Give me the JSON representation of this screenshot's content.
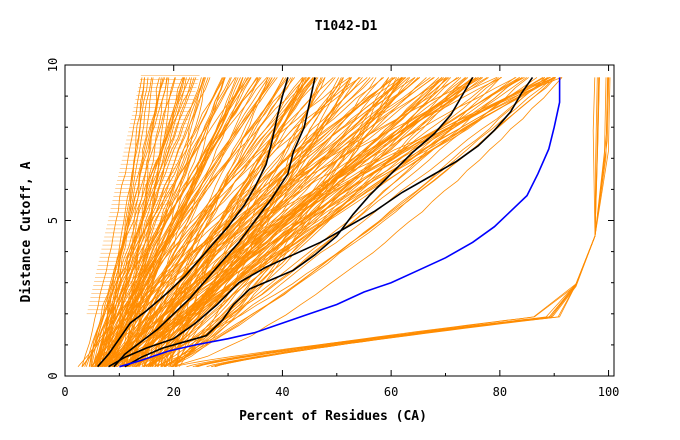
{
  "chart_data": {
    "type": "line",
    "title": "T1042-D1",
    "xlabel": "Percent of Residues (CA)",
    "ylabel": "Distance Cutoff, A",
    "xlim": [
      0,
      101
    ],
    "ylim": [
      0,
      10
    ],
    "xticks": [
      0,
      20,
      40,
      60,
      80,
      100
    ],
    "yticks": [
      0,
      5,
      10
    ],
    "grid": false,
    "colors": {
      "bundle": "#ff8c00",
      "highlight": "#000000",
      "best": "#0000ff"
    },
    "series": [
      {
        "color": "#000000",
        "points": [
          [
            6,
            0.3
          ],
          [
            8,
            0.7
          ],
          [
            10,
            1.2
          ],
          [
            12,
            1.7
          ],
          [
            15,
            2.1
          ],
          [
            19,
            2.7
          ],
          [
            22,
            3.2
          ],
          [
            25,
            3.8
          ],
          [
            27,
            4.2
          ],
          [
            30,
            4.8
          ],
          [
            33,
            5.5
          ],
          [
            35,
            6.1
          ],
          [
            37,
            6.8
          ],
          [
            38,
            7.5
          ],
          [
            39,
            8.3
          ],
          [
            40,
            9.0
          ],
          [
            41,
            9.6
          ]
        ]
      },
      {
        "color": "#000000",
        "points": [
          [
            9,
            0.3
          ],
          [
            11,
            0.7
          ],
          [
            14,
            1.1
          ],
          [
            17,
            1.5
          ],
          [
            20,
            2.0
          ],
          [
            23,
            2.5
          ],
          [
            26,
            3.1
          ],
          [
            29,
            3.7
          ],
          [
            32,
            4.3
          ],
          [
            35,
            5.0
          ],
          [
            38,
            5.7
          ],
          [
            41,
            6.5
          ],
          [
            42,
            7.2
          ],
          [
            44,
            8.0
          ],
          [
            45,
            8.8
          ],
          [
            46,
            9.6
          ]
        ]
      },
      {
        "color": "#000000",
        "points": [
          [
            11,
            0.3
          ],
          [
            14,
            0.6
          ],
          [
            18,
            0.9
          ],
          [
            22,
            1.1
          ],
          [
            26,
            1.3
          ],
          [
            29,
            1.8
          ],
          [
            31,
            2.3
          ],
          [
            34,
            2.8
          ],
          [
            38,
            3.1
          ],
          [
            42,
            3.4
          ],
          [
            46,
            3.9
          ],
          [
            50,
            4.5
          ],
          [
            53,
            5.2
          ],
          [
            56,
            5.8
          ],
          [
            60,
            6.5
          ],
          [
            64,
            7.2
          ],
          [
            68,
            7.8
          ],
          [
            71,
            8.4
          ],
          [
            73,
            9.0
          ],
          [
            75,
            9.6
          ]
        ]
      },
      {
        "color": "#000000",
        "points": [
          [
            8,
            0.3
          ],
          [
            11,
            0.6
          ],
          [
            15,
            0.9
          ],
          [
            20,
            1.2
          ],
          [
            24,
            1.7
          ],
          [
            28,
            2.3
          ],
          [
            32,
            3.0
          ],
          [
            37,
            3.5
          ],
          [
            42,
            3.9
          ],
          [
            47,
            4.3
          ],
          [
            52,
            4.8
          ],
          [
            57,
            5.3
          ],
          [
            62,
            5.9
          ],
          [
            67,
            6.4
          ],
          [
            72,
            6.9
          ],
          [
            76,
            7.4
          ],
          [
            79,
            7.9
          ],
          [
            82,
            8.5
          ],
          [
            84,
            9.1
          ],
          [
            86,
            9.6
          ]
        ]
      },
      {
        "color": "#0000ff",
        "points": [
          [
            10,
            0.3
          ],
          [
            14,
            0.5
          ],
          [
            19,
            0.8
          ],
          [
            24,
            1.0
          ],
          [
            30,
            1.2
          ],
          [
            35,
            1.4
          ],
          [
            40,
            1.7
          ],
          [
            45,
            2.0
          ],
          [
            50,
            2.3
          ],
          [
            55,
            2.7
          ],
          [
            60,
            3.0
          ],
          [
            65,
            3.4
          ],
          [
            70,
            3.8
          ],
          [
            75,
            4.3
          ],
          [
            79,
            4.8
          ],
          [
            82,
            5.3
          ],
          [
            85,
            5.8
          ],
          [
            87,
            6.5
          ],
          [
            89,
            7.3
          ],
          [
            90,
            8.0
          ],
          [
            91,
            8.8
          ],
          [
            91,
            9.6
          ]
        ]
      }
    ]
  }
}
